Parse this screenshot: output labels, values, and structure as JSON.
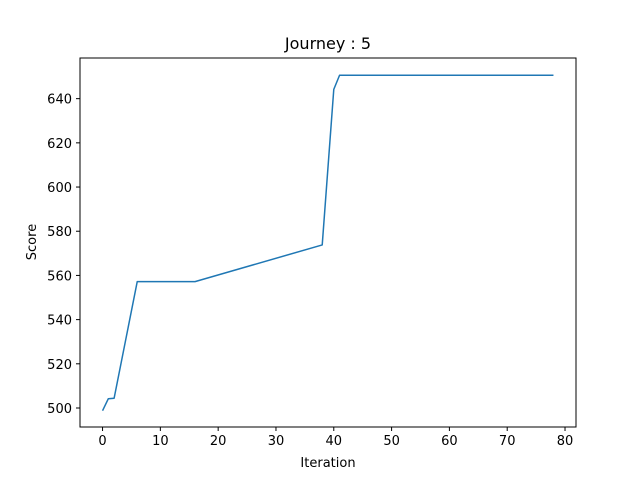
{
  "chart_data": {
    "type": "line",
    "title": "Journey : 5",
    "xlabel": "Iteration",
    "ylabel": "Score",
    "xlim": [
      -3.9,
      81.9
    ],
    "ylim": [
      491.4,
      658.4
    ],
    "xticks": [
      0,
      10,
      20,
      30,
      40,
      50,
      60,
      70,
      80
    ],
    "yticks": [
      500,
      520,
      540,
      560,
      580,
      600,
      620,
      640
    ],
    "grid": false,
    "line_color": "#1f77b4",
    "series": [
      {
        "x": [
          0,
          1,
          2,
          6,
          16,
          38,
          40,
          41,
          78
        ],
        "y": [
          498.8,
          504.2,
          504.4,
          557.2,
          557.2,
          573.8,
          644.2,
          650.6,
          650.6
        ]
      }
    ]
  }
}
